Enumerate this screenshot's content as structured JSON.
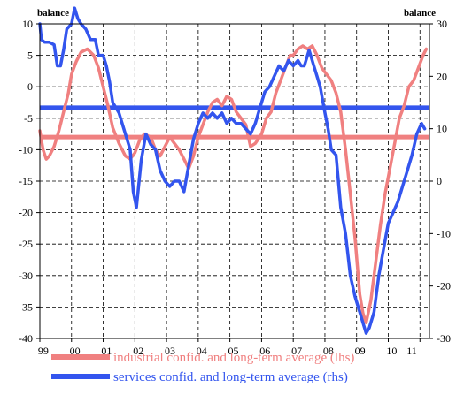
{
  "chart_data": {
    "type": "line",
    "left_axis_label": "balance",
    "right_axis_label": "balance",
    "left_ylim": [
      -40,
      10
    ],
    "right_ylim": [
      -30,
      30
    ],
    "left_ticks": [
      10,
      5,
      0,
      -5,
      -10,
      -15,
      -20,
      -25,
      -30,
      -35,
      -40
    ],
    "right_ticks": [
      30,
      20,
      10,
      0,
      -10,
      -20,
      -30
    ],
    "x_labels": [
      "99",
      "00",
      "01",
      "02",
      "03",
      "04",
      "05",
      "06",
      "07",
      "08",
      "09",
      "10",
      "11"
    ],
    "x_range": [
      1999.0,
      2011.3
    ],
    "grid": true,
    "legend_position": "bottom",
    "series": [
      {
        "name": "industrial confid. and long-term average (lhs)",
        "axis": "left",
        "color": "#f08080",
        "long_term_average": -8,
        "x": [
          1999.0,
          1999.1,
          1999.2,
          1999.3,
          1999.45,
          1999.6,
          1999.75,
          1999.9,
          2000.0,
          2000.15,
          2000.3,
          2000.5,
          2000.7,
          2000.85,
          2001.0,
          2001.15,
          2001.3,
          2001.5,
          2001.7,
          2001.85,
          2002.0,
          2002.15,
          2002.3,
          2002.5,
          2002.65,
          2002.8,
          2002.95,
          2003.1,
          2003.25,
          2003.4,
          2003.55,
          2003.7,
          2003.85,
          2004.0,
          2004.15,
          2004.3,
          2004.45,
          2004.6,
          2004.75,
          2004.9,
          2005.05,
          2005.2,
          2005.35,
          2005.5,
          2005.65,
          2005.8,
          2006.0,
          2006.15,
          2006.3,
          2006.45,
          2006.6,
          2006.75,
          2006.9,
          2007.0,
          2007.15,
          2007.3,
          2007.45,
          2007.6,
          2007.75,
          2007.9,
          2008.05,
          2008.2,
          2008.35,
          2008.5,
          2008.65,
          2008.8,
          2008.95,
          2009.1,
          2009.2,
          2009.3,
          2009.45,
          2009.6,
          2009.75,
          2009.9,
          2010.05,
          2010.2,
          2010.35,
          2010.5,
          2010.65,
          2010.8,
          2010.95,
          2011.1,
          2011.2
        ],
        "values": [
          -7,
          -10,
          -11.5,
          -11,
          -9.5,
          -7,
          -4,
          -1,
          2,
          4,
          5.5,
          6,
          5,
          3,
          0,
          -3,
          -6.5,
          -9,
          -11,
          -11.5,
          -10.5,
          -8.5,
          -7.5,
          -8,
          -10,
          -11,
          -9.5,
          -8,
          -9,
          -10,
          -11.5,
          -13,
          -11,
          -8,
          -6,
          -4,
          -2.5,
          -2,
          -3,
          -1.5,
          -2,
          -4,
          -5,
          -6,
          -9.5,
          -9,
          -7.5,
          -5,
          -4,
          -1,
          1,
          3,
          5,
          5,
          6,
          6.5,
          6,
          6.5,
          5,
          3,
          2,
          1,
          -1,
          -4,
          -10,
          -17,
          -24,
          -33,
          -36,
          -37.5,
          -34,
          -28,
          -22,
          -17,
          -13,
          -9,
          -5,
          -3,
          0,
          1,
          3,
          5,
          6
        ]
      },
      {
        "name": "services confid. and long-term average (rhs)",
        "axis": "right",
        "color": "#3355ee",
        "long_term_average": 14,
        "x": [
          1999.0,
          1999.05,
          1999.15,
          1999.3,
          1999.45,
          1999.55,
          1999.65,
          1999.75,
          1999.85,
          2000.0,
          2000.1,
          2000.2,
          2000.3,
          2000.45,
          2000.6,
          2000.75,
          2000.85,
          2001.0,
          2001.1,
          2001.2,
          2001.3,
          2001.4,
          2001.5,
          2001.6,
          2001.75,
          2001.85,
          2001.95,
          2002.05,
          2002.2,
          2002.35,
          2002.5,
          2002.65,
          2002.8,
          2002.95,
          2003.1,
          2003.25,
          2003.4,
          2003.55,
          2003.7,
          2003.85,
          2004.0,
          2004.15,
          2004.3,
          2004.45,
          2004.6,
          2004.75,
          2004.9,
          2005.05,
          2005.2,
          2005.35,
          2005.5,
          2005.65,
          2005.8,
          2005.95,
          2006.1,
          2006.25,
          2006.4,
          2006.55,
          2006.7,
          2006.85,
          2007.0,
          2007.15,
          2007.25,
          2007.35,
          2007.5,
          2007.65,
          2007.75,
          2007.85,
          2008.0,
          2008.1,
          2008.2,
          2008.35,
          2008.5,
          2008.65,
          2008.8,
          2008.95,
          2009.1,
          2009.2,
          2009.3,
          2009.4,
          2009.55,
          2009.7,
          2009.85,
          2010.0,
          2010.15,
          2010.3,
          2010.45,
          2010.6,
          2010.75,
          2010.9,
          2011.05,
          2011.15
        ],
        "values": [
          30,
          27,
          26.5,
          26.5,
          26,
          22,
          22,
          25,
          29,
          30,
          33,
          31,
          30,
          29,
          27,
          27,
          24,
          24,
          22,
          19,
          15,
          14,
          13,
          11,
          8,
          6,
          -2,
          -5,
          4,
          9,
          7,
          6,
          2,
          0,
          -1,
          0,
          0,
          -2,
          3,
          8,
          11,
          13,
          12,
          13,
          12,
          13,
          11,
          12,
          11,
          11,
          10,
          9,
          11,
          14,
          17,
          18,
          20,
          22,
          21,
          23,
          22,
          23,
          22,
          22,
          25,
          22,
          20,
          18,
          13,
          10,
          6,
          5,
          -5,
          -10,
          -18,
          -22,
          -25,
          -27,
          -29,
          -28,
          -25,
          -18,
          -13,
          -8,
          -6,
          -4,
          -1,
          2,
          5,
          9,
          11,
          10
        ]
      }
    ]
  }
}
